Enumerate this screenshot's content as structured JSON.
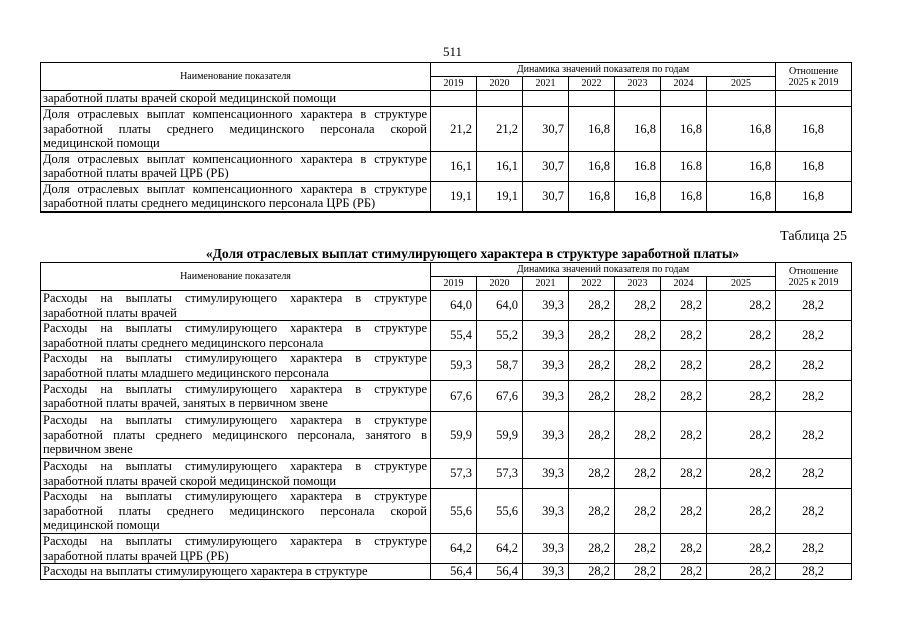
{
  "page_number": "511",
  "header": {
    "name_col": "Наименование показателя",
    "dynamics": "Динамика значений показателя по годам",
    "years": [
      "2019",
      "2020",
      "2021",
      "2022",
      "2023",
      "2024",
      "2025"
    ],
    "ratio": "Отношение 2025 к 2019"
  },
  "table1": {
    "rows": [
      {
        "name": "заработной платы врачей скорой медицинской помощи",
        "values": [
          "",
          "",
          "",
          "",
          "",
          "",
          ""
        ],
        "ratio": ""
      },
      {
        "name": "Доля отраслевых выплат компенсационного характера в структуре заработной платы среднего медицинского персонала скорой медицинской помощи",
        "values": [
          "21,2",
          "21,2",
          "30,7",
          "16,8",
          "16,8",
          "16,8",
          "16,8"
        ],
        "ratio": "16,8"
      },
      {
        "name": "Доля отраслевых выплат компенсационного характера в структуре заработной платы врачей ЦРБ (РБ)",
        "values": [
          "16,1",
          "16,1",
          "30,7",
          "16,8",
          "16.8",
          "16.8",
          "16,8"
        ],
        "ratio": "16,8"
      },
      {
        "name": "Доля отраслевых выплат компенсационного характера в структуре заработной платы среднего медицинского персонала ЦРБ (РБ)",
        "values": [
          "19,1",
          "19,1",
          "30,7",
          "16,8",
          "16,8",
          "16,8",
          "16,8"
        ],
        "ratio": "16,8"
      }
    ]
  },
  "table2": {
    "label": "Таблица 25",
    "title": "«Доля отраслевых выплат стимулирующего характера в структуре заработной платы»",
    "rows": [
      {
        "name": "Расходы на выплаты стимулирующего характера в структуре заработной платы врачей",
        "values": [
          "64,0",
          "64,0",
          "39,3",
          "28,2",
          "28,2",
          "28,2",
          "28,2"
        ],
        "ratio": "28,2"
      },
      {
        "name": "Расходы на выплаты стимулирующего характера в структуре заработной платы среднего медицинского персонала",
        "values": [
          "55,4",
          "55,2",
          "39,3",
          "28,2",
          "28,2",
          "28,2",
          "28,2"
        ],
        "ratio": "28,2"
      },
      {
        "name": "Расходы на выплаты стимулирующего характера в структуре заработной платы младшего медицинского персонала",
        "values": [
          "59,3",
          "58,7",
          "39,3",
          "28,2",
          "28,2",
          "28,2",
          "28,2"
        ],
        "ratio": "28,2"
      },
      {
        "name": "Расходы на выплаты стимулирующего характера в структуре заработной платы врачей, занятых в первичном звене",
        "values": [
          "67,6",
          "67,6",
          "39,3",
          "28,2",
          "28,2",
          "28,2",
          "28,2"
        ],
        "ratio": "28,2"
      },
      {
        "name": "Расходы на выплаты стимулирующего характера в структуре заработной платы среднего медицинского персонала, занятого в первичном звене",
        "values": [
          "59,9",
          "59,9",
          "39,3",
          "28,2",
          "28,2",
          "28,2",
          "28,2"
        ],
        "ratio": "28,2"
      },
      {
        "name": "Расходы на выплаты стимулирующего характера в структуре заработной платы врачей скорой медицинской помощи",
        "values": [
          "57,3",
          "57,3",
          "39,3",
          "28,2",
          "28,2",
          "28,2",
          "28,2"
        ],
        "ratio": "28,2"
      },
      {
        "name": "Расходы на выплаты стимулирующего характера в структуре заработной платы среднего медицинского персонала скорой медицинской помощи",
        "values": [
          "55,6",
          "55,6",
          "39,3",
          "28,2",
          "28,2",
          "28,2",
          "28,2"
        ],
        "ratio": "28,2"
      },
      {
        "name": "Расходы на выплаты стимулирующего характера в структуре заработной платы врачей ЦРБ (РБ)",
        "values": [
          "64,2",
          "64,2",
          "39,3",
          "28,2",
          "28,2",
          "28,2",
          "28,2"
        ],
        "ratio": "28,2"
      },
      {
        "name": "Расходы на выплаты стимулирующего характера в структуре",
        "values": [
          "56,4",
          "56,4",
          "39,3",
          "28,2",
          "28,2",
          "28,2",
          "28,2"
        ],
        "ratio": "28,2"
      }
    ]
  }
}
